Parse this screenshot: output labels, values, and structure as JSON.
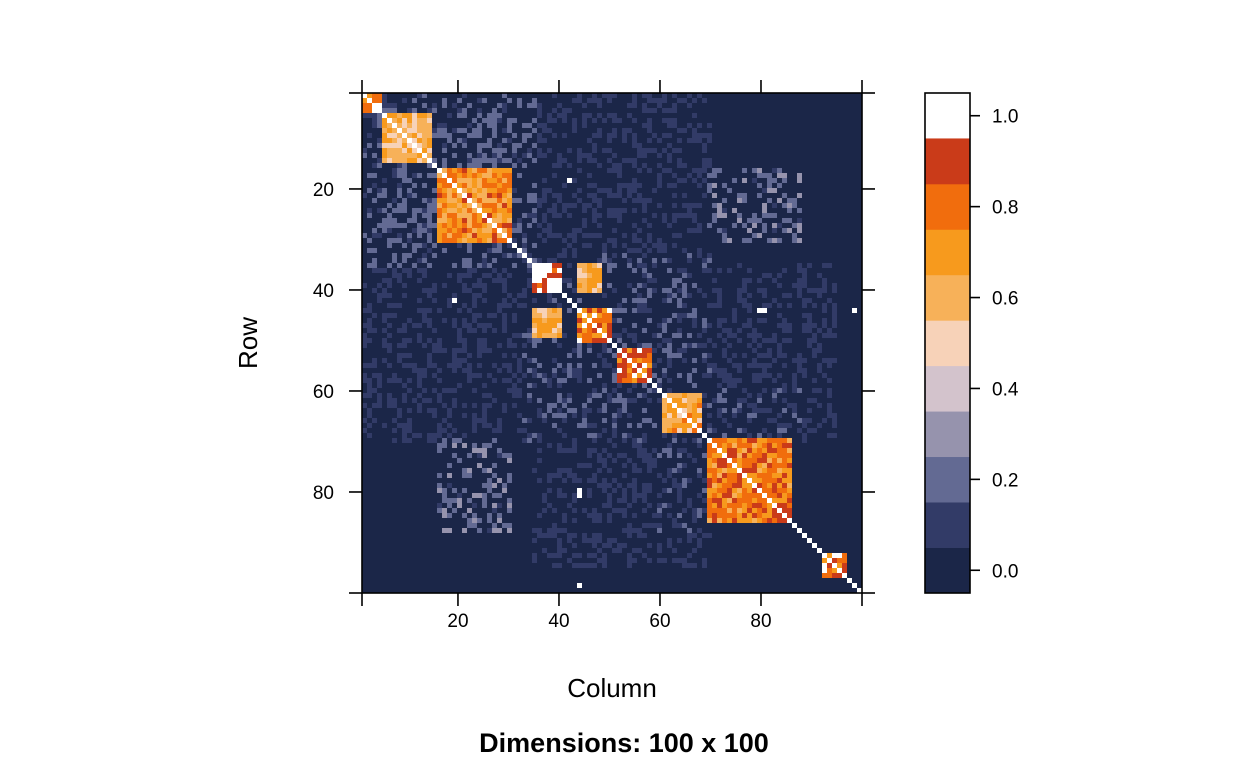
{
  "chart_data": {
    "type": "heatmap",
    "xlabel": "Column",
    "ylabel": "Row",
    "sub": "Dimensions: 100 x 100",
    "nrow": 100,
    "ncol": 100,
    "xlim": [
      1,
      100
    ],
    "ylim": [
      1,
      100
    ],
    "x_ticks": [
      20,
      40,
      60,
      80
    ],
    "y_ticks": [
      20,
      40,
      60,
      80
    ],
    "colorbar": {
      "breaks": [
        -0.05,
        0.05,
        0.15,
        0.25,
        0.35,
        0.45,
        0.55,
        0.65,
        0.75,
        0.85,
        0.95,
        1.05
      ],
      "colors": [
        "#1b2648",
        "#323b67",
        "#636a93",
        "#9693ad",
        "#d3c3cc",
        "#f7d2b8",
        "#f7b159",
        "#f79a1d",
        "#f16d0d",
        "#ca3b19",
        "#ffffff"
      ],
      "ticks": [
        0.0,
        0.2,
        0.4,
        0.6,
        0.8,
        1.0
      ],
      "tick_labels": [
        "0.0",
        "0.2",
        "0.4",
        "0.6",
        "0.8",
        "1.0"
      ]
    },
    "diagonal_value": 1.0,
    "background_value": 0.0,
    "blocks": [
      {
        "rows": [
          1,
          4
        ],
        "cols": [
          1,
          4
        ],
        "value": 0.88
      },
      {
        "rows": [
          5,
          14
        ],
        "cols": [
          5,
          14
        ],
        "value": 0.62
      },
      {
        "rows": [
          16,
          30
        ],
        "cols": [
          16,
          30
        ],
        "value": 0.72
      },
      {
        "rows": [
          35,
          40
        ],
        "cols": [
          35,
          40
        ],
        "value": 1.0
      },
      {
        "rows": [
          35,
          40
        ],
        "cols": [
          44,
          48
        ],
        "value": 0.62
      },
      {
        "rows": [
          44,
          49
        ],
        "cols": [
          35,
          40
        ],
        "value": 0.62
      },
      {
        "rows": [
          44,
          50
        ],
        "cols": [
          44,
          50
        ],
        "value": 0.82
      },
      {
        "rows": [
          52,
          58
        ],
        "cols": [
          52,
          58
        ],
        "value": 0.82
      },
      {
        "rows": [
          61,
          68
        ],
        "cols": [
          61,
          68
        ],
        "value": 0.66
      },
      {
        "rows": [
          70,
          86
        ],
        "cols": [
          70,
          86
        ],
        "value": 0.78
      },
      {
        "rows": [
          93,
          97
        ],
        "cols": [
          93,
          97
        ],
        "value": 0.88
      }
    ],
    "weak_regions": [
      {
        "rows": [
          1,
          35
        ],
        "cols": [
          1,
          35
        ],
        "value": 0.22
      },
      {
        "rows": [
          33,
          70
        ],
        "cols": [
          33,
          70
        ],
        "value": 0.18
      },
      {
        "rows": [
          16,
          30
        ],
        "cols": [
          70,
          88
        ],
        "value": 0.28
      },
      {
        "rows": [
          70,
          88
        ],
        "cols": [
          16,
          30
        ],
        "value": 0.28
      },
      {
        "rows": [
          60,
          70
        ],
        "cols": [
          70,
          88
        ],
        "value": 0.18
      },
      {
        "rows": [
          70,
          88
        ],
        "cols": [
          60,
          70
        ],
        "value": 0.18
      },
      {
        "rows": [
          35,
          70
        ],
        "cols": [
          70,
          95
        ],
        "value": 0.12
      },
      {
        "rows": [
          70,
          95
        ],
        "cols": [
          35,
          70
        ],
        "value": 0.12
      },
      {
        "rows": [
          1,
          35
        ],
        "cols": [
          35,
          70
        ],
        "value": 0.12
      },
      {
        "rows": [
          35,
          70
        ],
        "cols": [
          1,
          35
        ],
        "value": 0.12
      }
    ],
    "white_cells": [
      [
        18,
        42
      ],
      [
        42,
        19
      ],
      [
        44,
        99
      ],
      [
        44,
        81
      ],
      [
        80,
        44
      ],
      [
        99,
        44
      ],
      [
        81,
        44
      ],
      [
        44,
        80
      ]
    ]
  }
}
